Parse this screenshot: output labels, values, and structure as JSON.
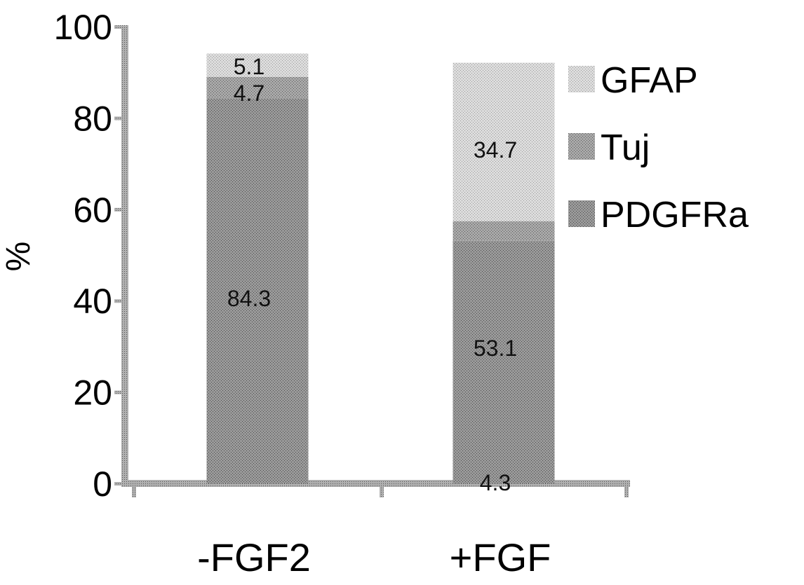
{
  "chart_data": {
    "type": "bar",
    "stacked": true,
    "categories": [
      "-FGF2",
      "+FGF"
    ],
    "ylabel": "%",
    "xlabel": "",
    "ylim": [
      0,
      100
    ],
    "yticks": [
      0,
      20,
      40,
      60,
      80,
      100
    ],
    "grid": false,
    "legend_position": "right",
    "series": [
      {
        "name": "PDGFRa",
        "values": [
          84.3,
          53.1
        ],
        "labels": [
          "84.3",
          "53.1"
        ],
        "color": "#9a9a9a"
      },
      {
        "name": "Tuj",
        "values": [
          4.7,
          4.3
        ],
        "labels": [
          "4.7",
          "4.3"
        ],
        "color": "#8a8a8a"
      },
      {
        "name": "GFAP",
        "values": [
          5.1,
          34.7
        ],
        "labels": [
          "5.1",
          "34.7"
        ],
        "color": "#cfcfcf"
      }
    ],
    "legend_order": [
      "GFAP",
      "Tuj",
      "PDGFRa"
    ]
  }
}
